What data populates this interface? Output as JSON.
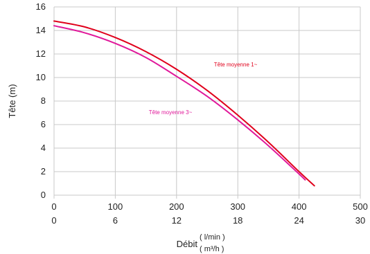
{
  "chart_data": {
    "type": "line",
    "ylabel": "Tête (m)",
    "xlabel": "Débit",
    "xunits": [
      "( l/min )",
      "( m³/h )"
    ],
    "xlim": [
      0,
      500
    ],
    "ylim": [
      0,
      16
    ],
    "xticks": [
      "0",
      "100",
      "200",
      "300",
      "400",
      "500"
    ],
    "xticks_secondary": [
      "0",
      "6",
      "12",
      "18",
      "24",
      "30"
    ],
    "yticks": [
      "0",
      "2",
      "4",
      "6",
      "8",
      "10",
      "12",
      "14",
      "16"
    ],
    "grid": true,
    "series": [
      {
        "name": "Tête moyenne 1~",
        "color": "#e0001b",
        "x": [
          0,
          50,
          100,
          150,
          200,
          250,
          300,
          350,
          400,
          425
        ],
        "y": [
          14.8,
          14.3,
          13.4,
          12.2,
          10.7,
          8.9,
          6.8,
          4.5,
          2.0,
          0.8
        ]
      },
      {
        "name": "Tête moyenne 3~",
        "color": "#e0189a",
        "x": [
          0,
          50,
          100,
          150,
          200,
          250,
          300,
          350,
          400,
          410
        ],
        "y": [
          14.4,
          13.8,
          12.9,
          11.7,
          10.1,
          8.4,
          6.4,
          4.2,
          1.8,
          1.3
        ]
      }
    ]
  }
}
